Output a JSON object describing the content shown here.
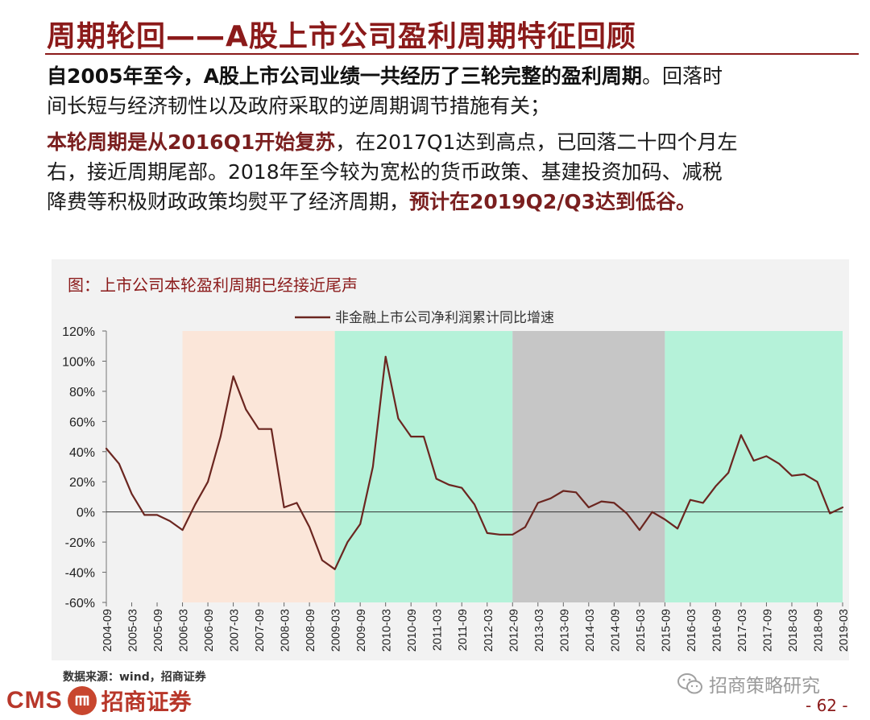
{
  "header": {
    "title": "周期轮回——A股上市公司盈利周期特征回顾"
  },
  "para1": {
    "l1_a": "自2005年至今，A股上市公司业绩一共经历了三轮完整的盈利周期",
    "l1_b": "。回落时",
    "l2": "间长短与经济韧性以及政府采取的逆周期调节措施有关；"
  },
  "para2": {
    "l1_a": "本轮周期是从2016Q1开始复苏",
    "l1_b": "，在2017Q1达到高点，已回落二十四个月左",
    "l2": "右，接近周期尾部。2018年至今较为宽松的货币政策、基建投资加码、减税",
    "l3_a": "降费等积极财政政策均熨平了经济周期，",
    "l3_b": "预计在2019Q2/Q3达到低谷。"
  },
  "figure": {
    "title": "图：上市公司本轮盈利周期已经接近尾声"
  },
  "footer": {
    "source": "数据来源：wind，招商证券",
    "logo_cms": "CMS",
    "logo_name": "招商证券",
    "wechat": "招商策略研究",
    "page": "- 62 -"
  },
  "colors": {
    "accent": "#8b1a1a",
    "line": "#6b2620"
  },
  "chart_data": {
    "type": "line",
    "legend": "非金融上市公司净利润累计同比增速",
    "legend_position": "top-center",
    "ylim": [
      -60,
      120
    ],
    "yticks": [
      -60,
      -40,
      -20,
      0,
      20,
      40,
      60,
      80,
      100,
      120
    ],
    "ytick_labels": [
      "-60%",
      "-40%",
      "-20%",
      "0%",
      "20%",
      "40%",
      "60%",
      "80%",
      "100%",
      "120%"
    ],
    "x_tick_labels": [
      "2004-09",
      "2005-03",
      "2005-09",
      "2006-03",
      "2006-09",
      "2007-03",
      "2007-09",
      "2008-03",
      "2008-09",
      "2009-03",
      "2009-09",
      "2010-03",
      "2010-09",
      "2011-03",
      "2011-09",
      "2012-03",
      "2012-09",
      "2013-03",
      "2013-09",
      "2014-03",
      "2014-09",
      "2015-03",
      "2015-09",
      "2016-03",
      "2016-09",
      "2017-03",
      "2017-09",
      "2018-03",
      "2018-09",
      "2019-03"
    ],
    "shaded_regions": [
      {
        "start": "2006-03",
        "end": "2009-03",
        "color": "#fbe6d9"
      },
      {
        "start": "2009-03",
        "end": "2012-09",
        "color": "#b5f2d9"
      },
      {
        "start": "2012-09",
        "end": "2015-09",
        "color": "#c6c6c6"
      },
      {
        "start": "2015-09",
        "end": "2019-03",
        "color": "#b5f2d9"
      }
    ],
    "series": [
      {
        "name": "非金融上市公司净利润累计同比增速",
        "points": [
          [
            "2004-09",
            42
          ],
          [
            "2004-12",
            32
          ],
          [
            "2005-03",
            12
          ],
          [
            "2005-06",
            -2
          ],
          [
            "2005-09",
            -2
          ],
          [
            "2005-12",
            -6
          ],
          [
            "2006-03",
            -12
          ],
          [
            "2006-06",
            5
          ],
          [
            "2006-09",
            20
          ],
          [
            "2006-12",
            50
          ],
          [
            "2007-03",
            90
          ],
          [
            "2007-06",
            68
          ],
          [
            "2007-09",
            55
          ],
          [
            "2007-12",
            55
          ],
          [
            "2008-03",
            3
          ],
          [
            "2008-06",
            6
          ],
          [
            "2008-09",
            -10
          ],
          [
            "2008-12",
            -32
          ],
          [
            "2009-03",
            -38
          ],
          [
            "2009-06",
            -20
          ],
          [
            "2009-09",
            -8
          ],
          [
            "2009-12",
            30
          ],
          [
            "2010-03",
            103
          ],
          [
            "2010-06",
            62
          ],
          [
            "2010-09",
            50
          ],
          [
            "2010-12",
            50
          ],
          [
            "2011-03",
            22
          ],
          [
            "2011-06",
            18
          ],
          [
            "2011-09",
            16
          ],
          [
            "2011-12",
            5
          ],
          [
            "2012-03",
            -14
          ],
          [
            "2012-06",
            -15
          ],
          [
            "2012-09",
            -15
          ],
          [
            "2012-12",
            -10
          ],
          [
            "2013-03",
            6
          ],
          [
            "2013-06",
            9
          ],
          [
            "2013-09",
            14
          ],
          [
            "2013-12",
            13
          ],
          [
            "2014-03",
            3
          ],
          [
            "2014-06",
            7
          ],
          [
            "2014-09",
            6
          ],
          [
            "2014-12",
            -1
          ],
          [
            "2015-03",
            -12
          ],
          [
            "2015-06",
            0
          ],
          [
            "2015-09",
            -5
          ],
          [
            "2015-12",
            -11
          ],
          [
            "2016-03",
            8
          ],
          [
            "2016-06",
            6
          ],
          [
            "2016-09",
            17
          ],
          [
            "2016-12",
            26
          ],
          [
            "2017-03",
            51
          ],
          [
            "2017-06",
            34
          ],
          [
            "2017-09",
            37
          ],
          [
            "2017-12",
            32
          ],
          [
            "2018-03",
            24
          ],
          [
            "2018-06",
            25
          ],
          [
            "2018-09",
            20
          ],
          [
            "2018-12",
            -1
          ],
          [
            "2019-03",
            3
          ]
        ]
      }
    ]
  }
}
